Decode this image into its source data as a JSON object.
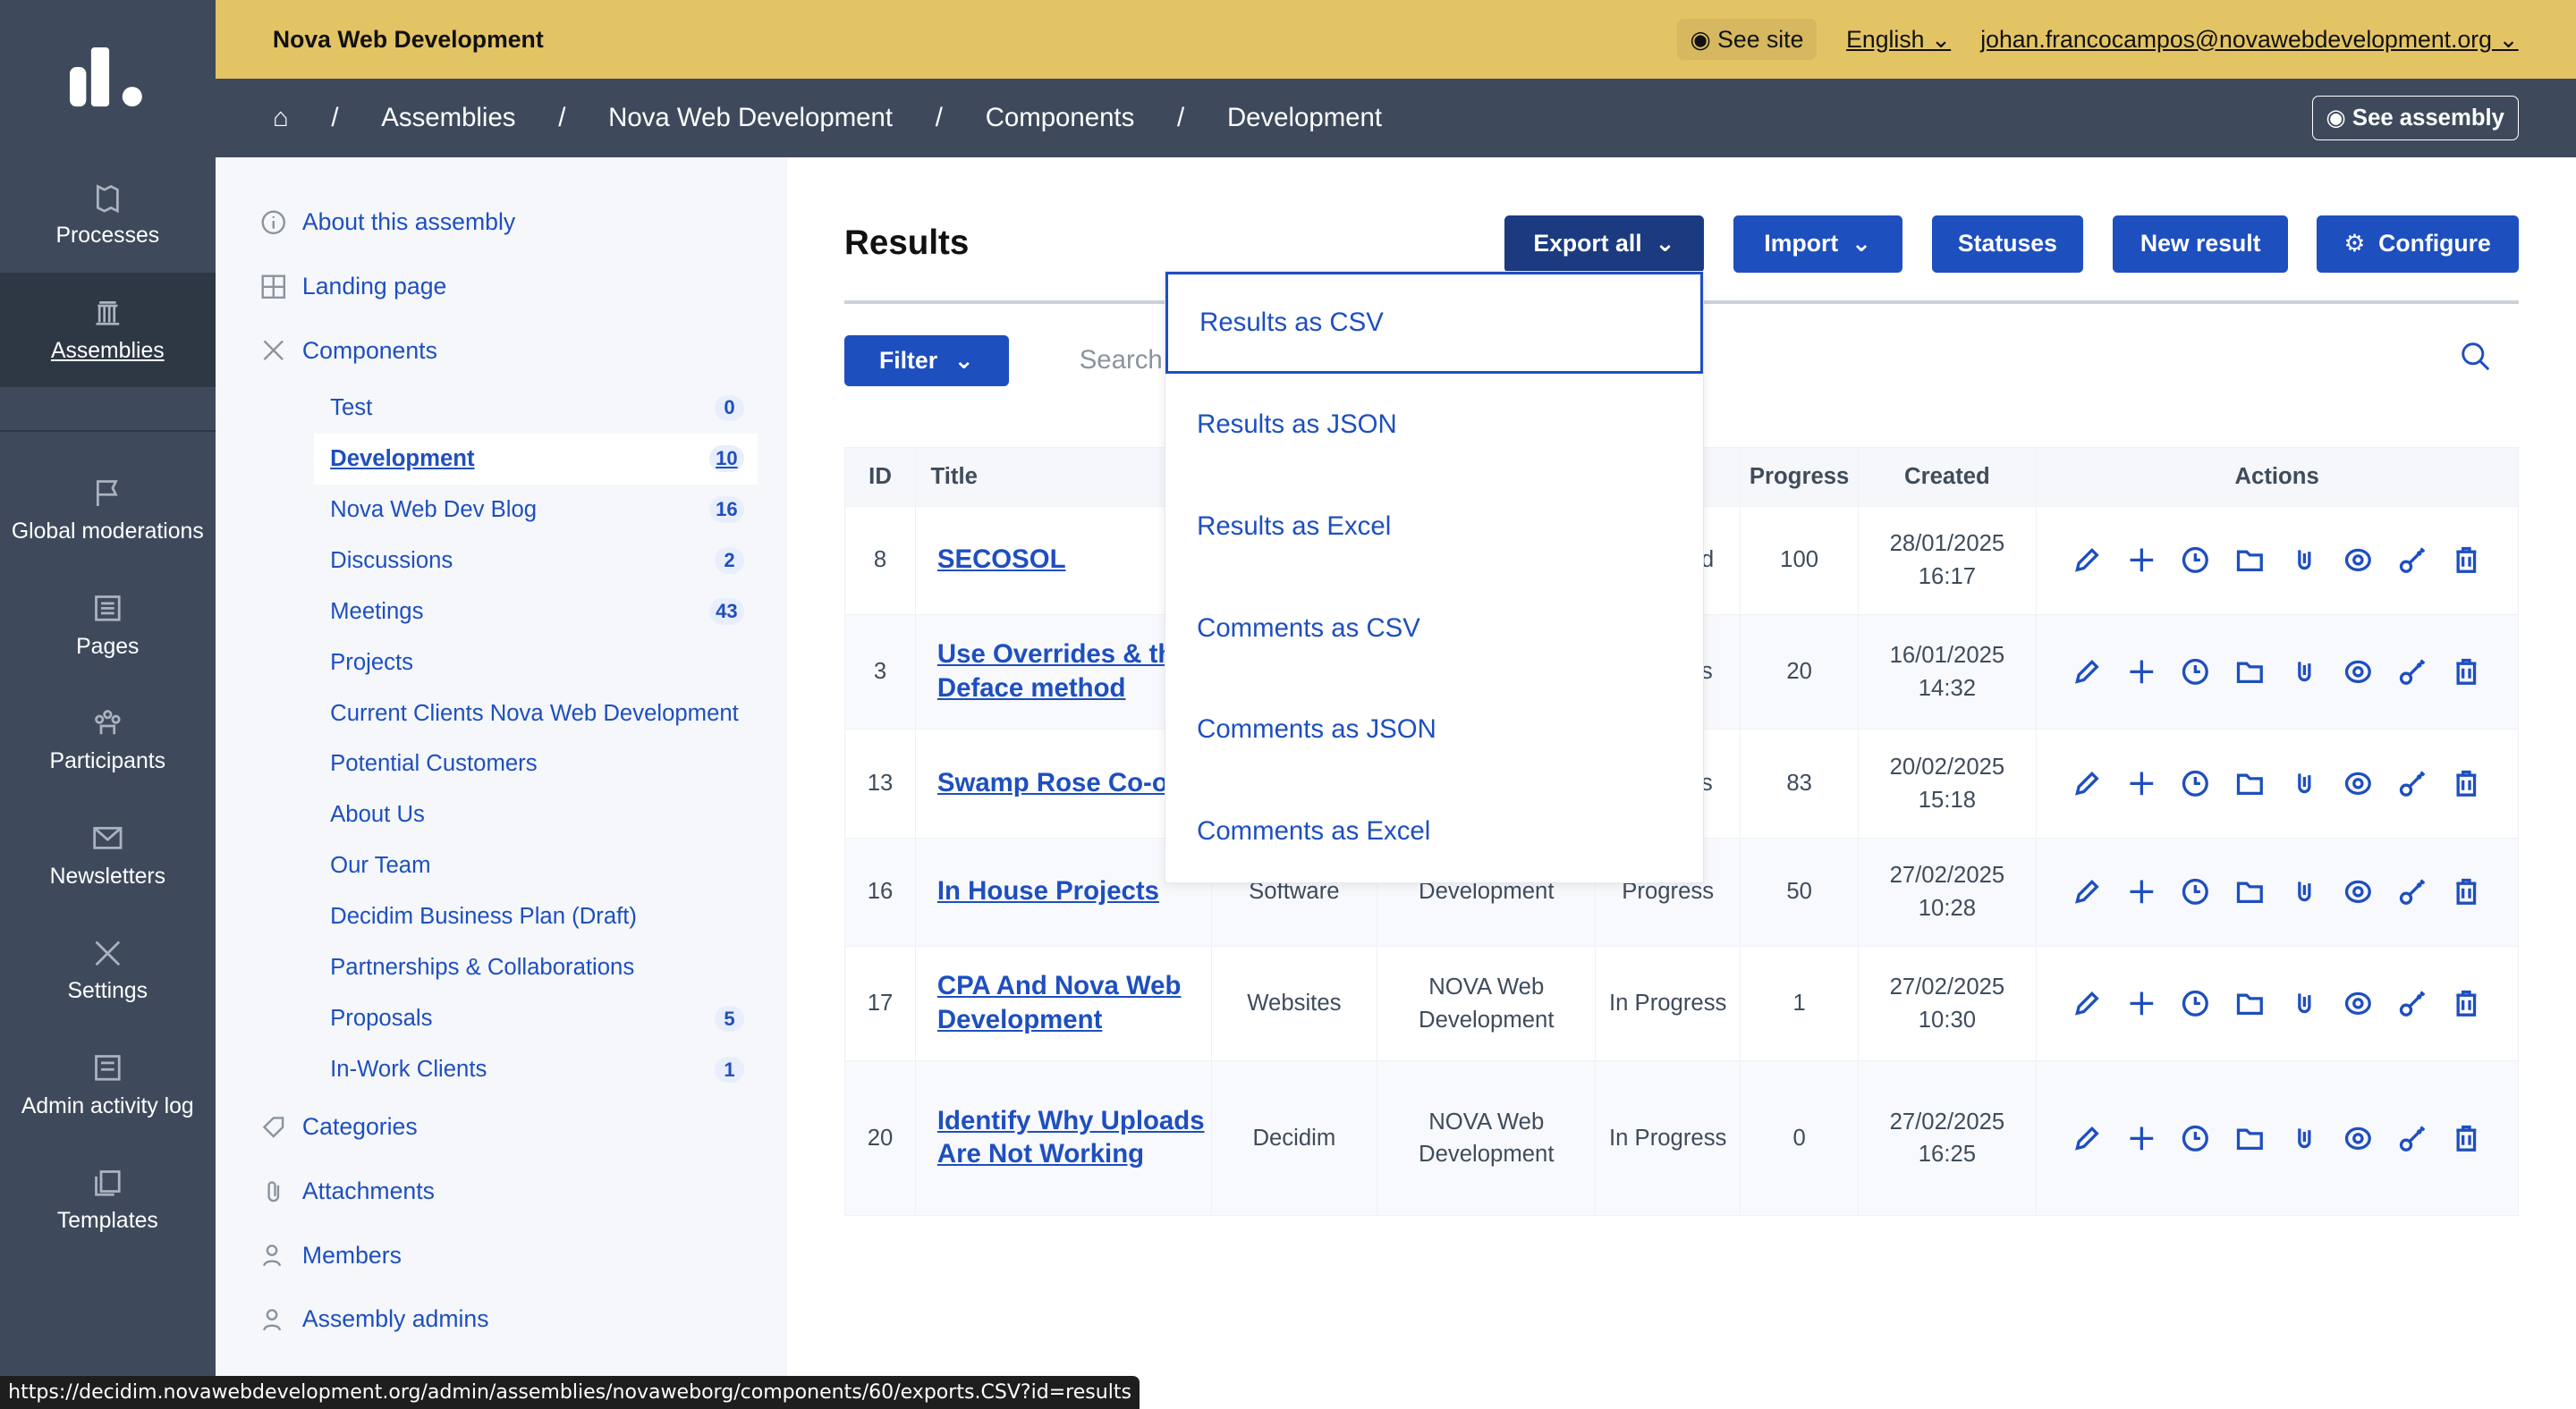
{
  "top": {
    "org": "Nova Web Development",
    "see_site": "See site",
    "language": "English",
    "user": "johan.francocampos@novawebdevelopment.org"
  },
  "breadcrumb": [
    "Assemblies",
    "Nova Web Development",
    "Components",
    "Development"
  ],
  "see_assembly": "See assembly",
  "nav": [
    {
      "label": "Processes",
      "icon": "processes-icon"
    },
    {
      "label": "Assemblies",
      "icon": "assemblies-icon",
      "active": true
    },
    {
      "label": "Global moderations",
      "icon": "flag-icon"
    },
    {
      "label": "Pages",
      "icon": "pages-icon"
    },
    {
      "label": "Participants",
      "icon": "participants-icon"
    },
    {
      "label": "Newsletters",
      "icon": "mail-icon"
    },
    {
      "label": "Settings",
      "icon": "settings-icon"
    },
    {
      "label": "Admin activity log",
      "icon": "log-icon"
    },
    {
      "label": "Templates",
      "icon": "templates-icon"
    }
  ],
  "submenu": {
    "about": "About this assembly",
    "landing": "Landing page",
    "components": "Components",
    "component_items": [
      {
        "label": "Test",
        "count": "0"
      },
      {
        "label": "Development",
        "count": "10",
        "active": true
      },
      {
        "label": "Nova Web Dev Blog",
        "count": "16"
      },
      {
        "label": "Discussions",
        "count": "2"
      },
      {
        "label": "Meetings",
        "count": "43"
      },
      {
        "label": "Projects"
      },
      {
        "label": "Current Clients Nova Web Development"
      },
      {
        "label": "Potential Customers"
      },
      {
        "label": "About Us"
      },
      {
        "label": "Our Team"
      },
      {
        "label": "Decidim Business Plan (Draft)"
      },
      {
        "label": "Partnerships & Collaborations"
      },
      {
        "label": "Proposals",
        "count": "5"
      },
      {
        "label": "In-Work Clients",
        "count": "1"
      }
    ],
    "categories": "Categories",
    "attachments": "Attachments",
    "members": "Members",
    "admins": "Assembly admins"
  },
  "main": {
    "title": "Results",
    "buttons": {
      "export": "Export all",
      "import": "Import",
      "statuses": "Statuses",
      "new": "New result",
      "configure": "Configure"
    },
    "filter": "Filter",
    "search_placeholder": "Search",
    "export_menu": [
      "Results as CSV",
      "Results as JSON",
      "Results as Excel",
      "Comments as CSV",
      "Comments as JSON",
      "Comments as Excel"
    ],
    "columns": {
      "id": "ID",
      "title": "Title",
      "progress": "Progress",
      "created": "Created",
      "actions": "Actions"
    },
    "rows": [
      {
        "id": "8",
        "title": "SECOSOL",
        "category": "",
        "scope": "",
        "status": "d",
        "progress": "100",
        "created": "28/01/2025 16:17"
      },
      {
        "id": "3",
        "title": "Use Overrides & the Deface method",
        "category": "",
        "scope": "",
        "status": "s",
        "progress": "20",
        "created": "16/01/2025 14:32"
      },
      {
        "id": "13",
        "title": "Swamp Rose Co-op",
        "category": "",
        "scope": "",
        "status": "s",
        "progress": "83",
        "created": "20/02/2025 15:18"
      },
      {
        "id": "16",
        "title": "In House Projects",
        "category": "Software",
        "scope": "Development",
        "status": "Progress",
        "progress": "50",
        "created": "27/02/2025 10:28"
      },
      {
        "id": "17",
        "title": "CPA And Nova Web Development",
        "category": "Websites",
        "scope": "NOVA Web Development",
        "status": "In Progress",
        "progress": "1",
        "created": "27/02/2025 10:30"
      },
      {
        "id": "20",
        "title": "Identify Why Uploads Are Not Working",
        "category": "Decidim",
        "scope": "NOVA Web Development",
        "status": "In Progress",
        "progress": "0",
        "created": "27/02/2025 16:25"
      }
    ],
    "action_icons": [
      "pencil-icon",
      "plus-icon",
      "clock-icon",
      "folder-icon",
      "paperclip-icon",
      "eye-icon",
      "key-icon",
      "trash-icon"
    ]
  },
  "status_url": "https://decidim.novawebdevelopment.org/admin/assemblies/novaweborg/components/60/exports.CSV?id=results",
  "colors": {
    "accent": "#1e4fbf",
    "sidebar": "#3e4a5c",
    "topbar": "#e3c465"
  }
}
